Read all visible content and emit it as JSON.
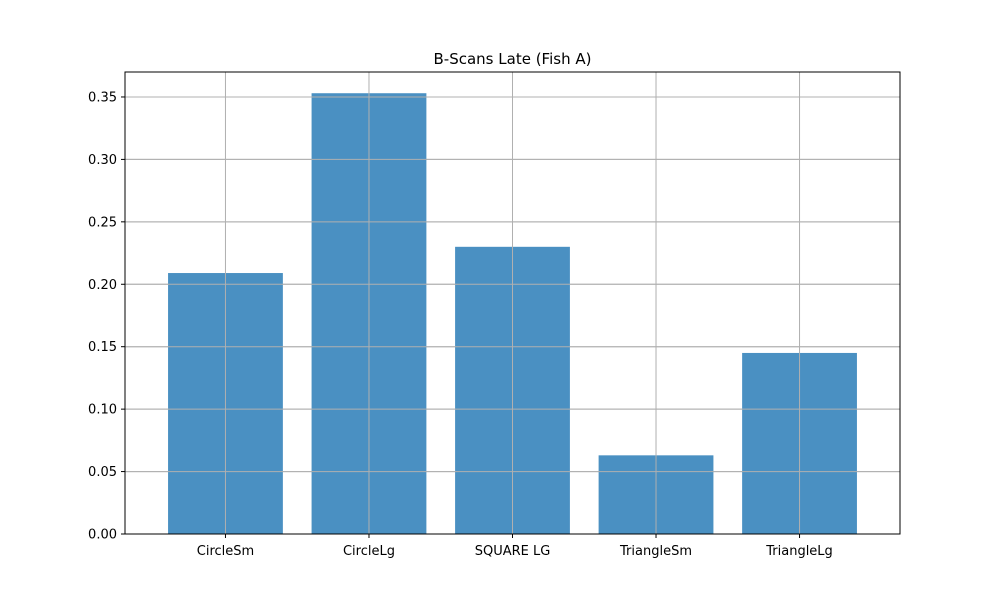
{
  "chart_data": {
    "type": "bar",
    "title": "B-Scans Late (Fish A)",
    "xlabel": "",
    "ylabel": "",
    "categories": [
      "CircleSm",
      "CircleLg",
      "SQUARE LG",
      "TriangleSm",
      "TriangleLg"
    ],
    "values": [
      0.209,
      0.353,
      0.23,
      0.063,
      0.145
    ],
    "ylim": [
      0,
      0.37
    ],
    "yticks": [
      0.0,
      0.05,
      0.1,
      0.15,
      0.2,
      0.25,
      0.3,
      0.35
    ],
    "ytick_labels": [
      "0.00",
      "0.05",
      "0.10",
      "0.15",
      "0.20",
      "0.25",
      "0.30",
      "0.35"
    ],
    "grid": true,
    "legend": "none",
    "colors": {
      "bar": "#4a90c2",
      "grid": "#b0b0b0",
      "axis": "#000000"
    }
  }
}
